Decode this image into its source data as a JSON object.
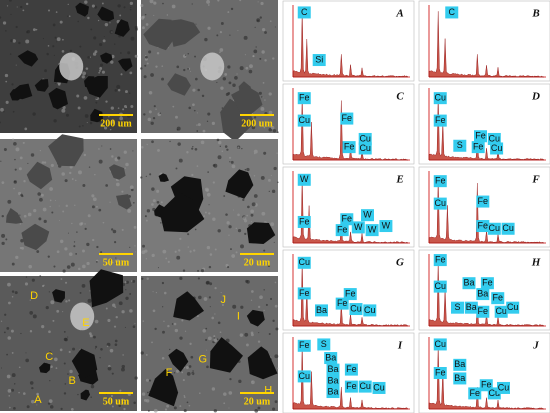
{
  "sem_panels": [
    {
      "scale_bar": "200 um",
      "points": []
    },
    {
      "scale_bar": "200 um",
      "points": []
    },
    {
      "scale_bar": "50 um",
      "points": []
    },
    {
      "scale_bar": "20 um",
      "points": []
    },
    {
      "scale_bar": "50 um",
      "points": [
        "A",
        "B",
        "C",
        "D",
        "E"
      ]
    },
    {
      "scale_bar": "20 um",
      "points": [
        "F",
        "G",
        "H",
        "I",
        "J"
      ]
    }
  ],
  "spectra": [
    {
      "label": "A",
      "elements": [
        "C",
        "Si"
      ]
    },
    {
      "label": "B",
      "elements": [
        "C"
      ]
    },
    {
      "label": "C",
      "elements": [
        "Fe",
        "Cu",
        "Fe",
        "Cu",
        "Fe",
        "Cu"
      ]
    },
    {
      "label": "D",
      "elements": [
        "Cu",
        "Fe",
        "S",
        "Fe",
        "Cu",
        "Fe",
        "Cu"
      ]
    },
    {
      "label": "E",
      "elements": [
        "W",
        "Fe",
        "Fe",
        "W",
        "Fe",
        "W",
        "W",
        "W"
      ]
    },
    {
      "label": "F",
      "elements": [
        "Fe",
        "Cu",
        "Fe",
        "Fe",
        "Cu",
        "Cu"
      ]
    },
    {
      "label": "G",
      "elements": [
        "Cu",
        "Fe",
        "Ba",
        "Fe",
        "Fe",
        "Cu",
        "Cu"
      ]
    },
    {
      "label": "H",
      "elements": [
        "Fe",
        "Cu",
        "S",
        "Ba",
        "Ba",
        "Ba",
        "Fe",
        "Fe",
        "Fe",
        "Cu",
        "Cu"
      ]
    },
    {
      "label": "I",
      "elements": [
        "Fe",
        "S",
        "Cu",
        "Ba",
        "Ba",
        "Ba",
        "Ba",
        "Fe",
        "Fe",
        "Cu",
        "Cu"
      ]
    },
    {
      "label": "J",
      "elements": [
        "Cu",
        "Fe",
        "Ba",
        "Ba",
        "Fe",
        "Fe",
        "Cu",
        "Cu"
      ]
    }
  ]
}
